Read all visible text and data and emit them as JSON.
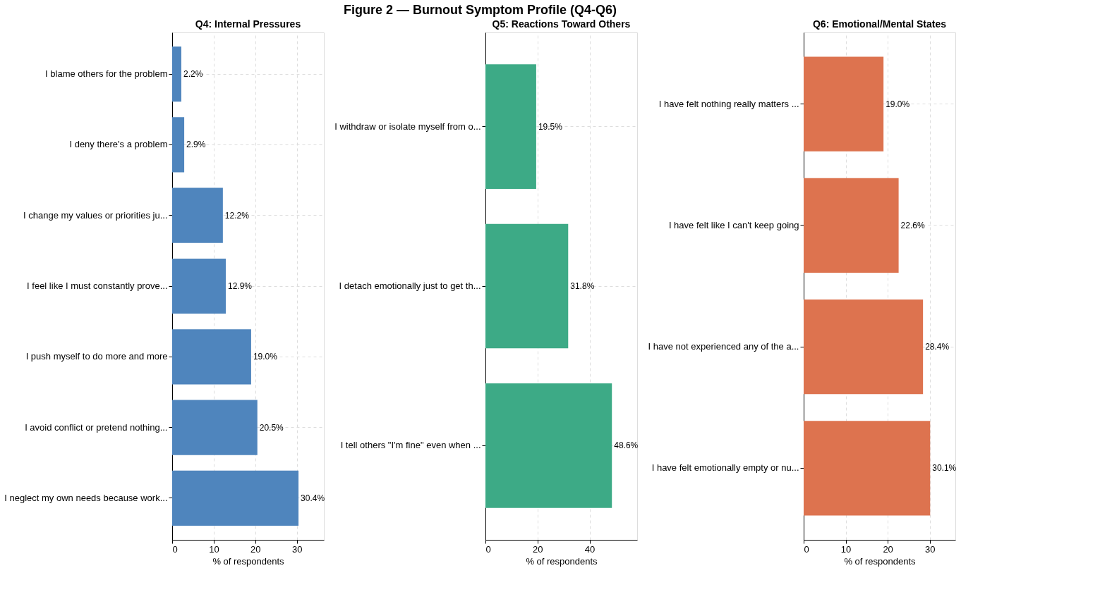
{
  "chart_data": [
    {
      "type": "bar",
      "orientation": "horizontal",
      "title": "Q4: Internal Pressures",
      "xlabel": "% of respondents",
      "categories": [
        "I blame others for the problem",
        "I deny there's a problem",
        "I change my values or priorities ju...",
        "I feel like I must constantly prove...",
        "I push myself to do more and more",
        "I avoid conflict or pretend nothing...",
        "I neglect my own needs because work..."
      ],
      "values": [
        2.2,
        2.9,
        12.2,
        12.9,
        19.0,
        20.5,
        30.4
      ],
      "value_labels": [
        "2.2%",
        "2.9%",
        "12.2%",
        "12.9%",
        "19.0%",
        "20.5%",
        "30.4%"
      ],
      "color": "#4f85bd",
      "xlim": [
        0,
        36.5
      ],
      "xticks": [
        0,
        10,
        20,
        30
      ],
      "grid": true,
      "annotations": [
        "Figure 2 — Burnout Symptom Profile (Q4-Q6)"
      ]
    },
    {
      "type": "bar",
      "orientation": "horizontal",
      "title": "Q5: Reactions Toward Others",
      "xlabel": "% of respondents",
      "categories": [
        "I withdraw or isolate myself from o...",
        "I detach emotionally just to get th...",
        "I tell others \"I'm fine\" even when ..."
      ],
      "values": [
        19.5,
        31.8,
        48.6
      ],
      "value_labels": [
        "19.5%",
        "31.8%",
        "48.6%"
      ],
      "color": "#3daa86",
      "xlim": [
        0,
        58.3
      ],
      "xticks": [
        0,
        20,
        40
      ],
      "grid": true
    },
    {
      "type": "bar",
      "orientation": "horizontal",
      "title": "Q6: Emotional/Mental States",
      "xlabel": "% of respondents",
      "categories": [
        "I have felt nothing really matters ...",
        "I have felt like I can't keep going",
        "I have not experienced any of the a...",
        "I have felt emotionally empty or nu..."
      ],
      "values": [
        19.0,
        22.6,
        28.4,
        30.1
      ],
      "value_labels": [
        "19.0%",
        "22.6%",
        "28.4%",
        "30.1%"
      ],
      "color": "#dd734f",
      "xlim": [
        0,
        36.1
      ],
      "xticks": [
        0,
        10,
        20,
        30
      ],
      "grid": true
    }
  ]
}
